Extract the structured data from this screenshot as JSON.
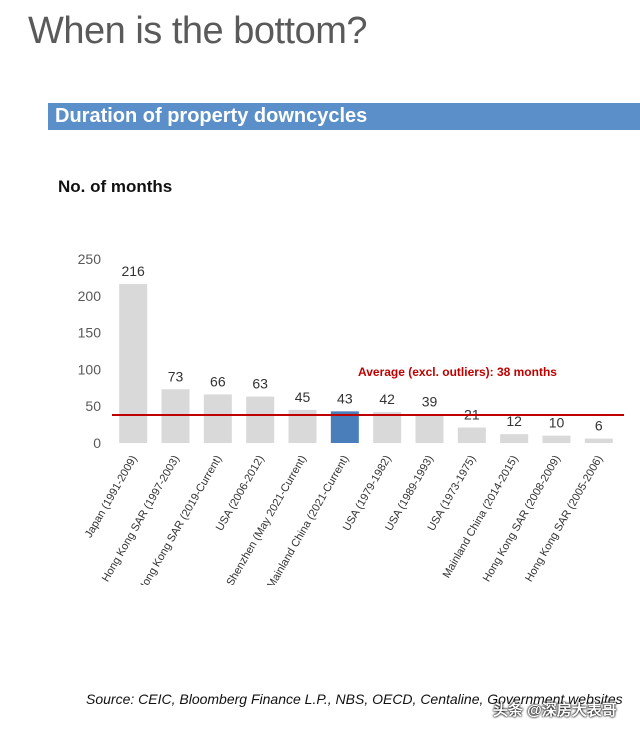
{
  "page": {
    "title": "When is the bottom?"
  },
  "banner": {
    "title": "Duration of property downcycles"
  },
  "source": "Source: CEIC, Bloomberg Finance L.P., NBS, OECD, Centaline, Government websites",
  "watermark": "头条 @深房大表哥",
  "colors": {
    "bar": "#d9d9d9",
    "highlight": "#4a7ebb",
    "average_line": "#c00000",
    "banner": "#5b8fc9"
  },
  "chart_data": {
    "type": "bar",
    "ylabel": "No. of months",
    "ylim": [
      0,
      250
    ],
    "yticks": [
      0,
      50,
      100,
      150,
      200,
      250
    ],
    "categories": [
      "Japan (1991-2009)",
      "Hong Kong SAR (1997-2003)",
      "Hong Kong SAR (2019-Current)",
      "USA (2006-2012)",
      "Shenzhen (May 2021-Current)",
      "Mainland China (2021-Current)",
      "USA (1979-1982)",
      "USA (1989-1993)",
      "USA (1973-1975)",
      "Mainland China (2014-2015)",
      "Hong Kong SAR (2008-2009)",
      "Hong Kong SAR (2005-2006)"
    ],
    "values": [
      216,
      73,
      66,
      63,
      45,
      43,
      42,
      39,
      21,
      12,
      10,
      6
    ],
    "highlight": "Mainland China (2021-Current)",
    "average": {
      "value": 38,
      "label": "Average (excl. outliers): 38 months"
    },
    "grid": false,
    "legend": "none"
  }
}
